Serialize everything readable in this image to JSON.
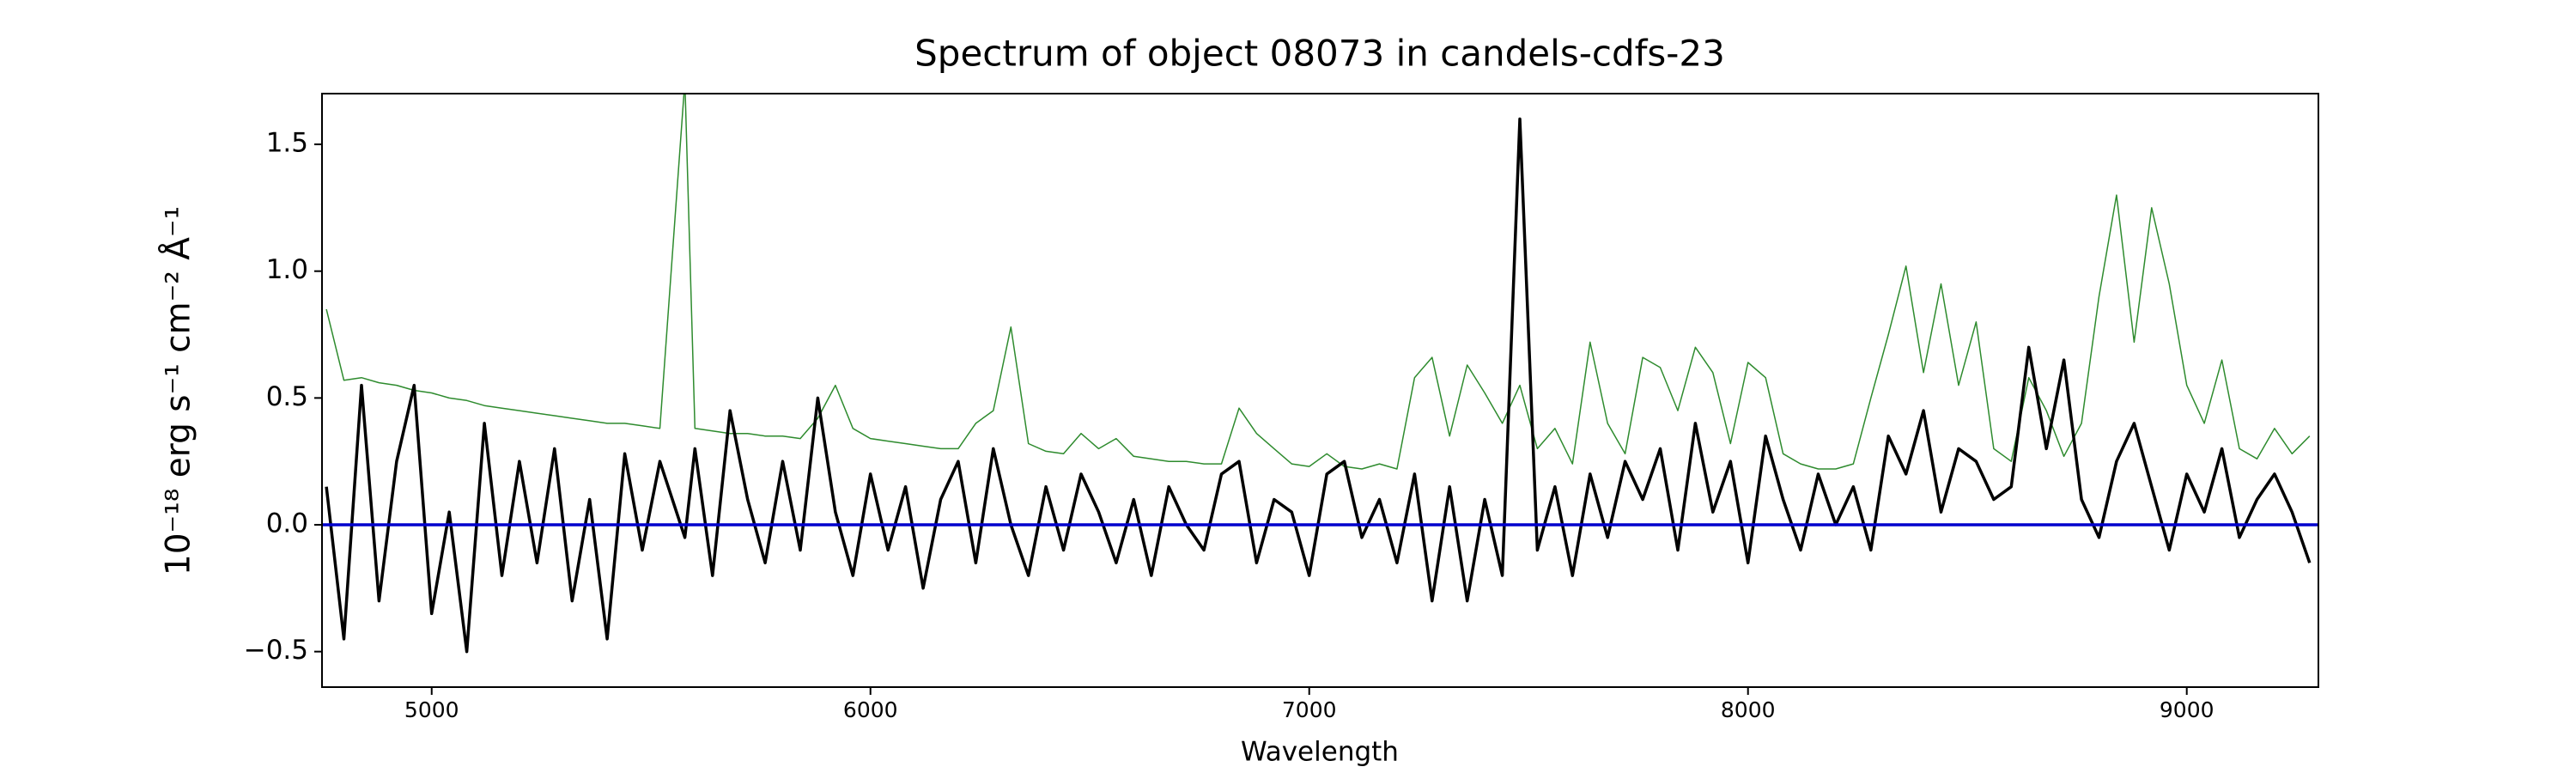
{
  "chart_data": {
    "type": "line",
    "title": "Spectrum of object 08073 in candels-cdfs-23",
    "x_label": "Wavelength",
    "y_label": "10⁻¹⁸ erg s⁻¹ cm⁻² Å⁻¹",
    "xlim": [
      4750,
      9300
    ],
    "ylim": [
      -0.64,
      1.7
    ],
    "xticks": [
      5000,
      6000,
      7000,
      8000,
      9000
    ],
    "yticks": [
      {
        "value": -0.5,
        "label": "−0.5"
      },
      {
        "value": 0,
        "label": "0.0"
      },
      {
        "value": 0.5,
        "label": "0.5"
      },
      {
        "value": 1,
        "label": "1.0"
      },
      {
        "value": 1.5,
        "label": "1.5"
      }
    ],
    "x": [
      4760,
      4800,
      4840,
      4880,
      4920,
      4960,
      5000,
      5040,
      5080,
      5120,
      5160,
      5200,
      5240,
      5280,
      5320,
      5360,
      5400,
      5440,
      5480,
      5520,
      5577,
      5600,
      5640,
      5680,
      5720,
      5760,
      5800,
      5840,
      5880,
      5920,
      5960,
      6000,
      6040,
      6080,
      6120,
      6160,
      6200,
      6240,
      6280,
      6320,
      6360,
      6400,
      6440,
      6480,
      6520,
      6560,
      6600,
      6640,
      6680,
      6720,
      6760,
      6800,
      6840,
      6880,
      6920,
      6960,
      7000,
      7040,
      7080,
      7120,
      7160,
      7200,
      7240,
      7280,
      7320,
      7360,
      7400,
      7440,
      7480,
      7520,
      7560,
      7600,
      7640,
      7680,
      7720,
      7760,
      7800,
      7840,
      7880,
      7920,
      7960,
      8000,
      8040,
      8080,
      8120,
      8160,
      8200,
      8240,
      8280,
      8320,
      8360,
      8400,
      8440,
      8480,
      8520,
      8560,
      8600,
      8640,
      8680,
      8720,
      8760,
      8800,
      8840,
      8880,
      8920,
      8960,
      9000,
      9040,
      9080,
      9120,
      9160,
      9200,
      9240,
      9280
    ],
    "series": [
      {
        "color": "#2e8b2e",
        "width": 1.5,
        "values": [
          0.85,
          0.57,
          0.58,
          0.56,
          0.55,
          0.53,
          0.52,
          0.5,
          0.49,
          0.47,
          0.46,
          0.45,
          0.44,
          0.43,
          0.42,
          0.41,
          0.4,
          0.4,
          0.39,
          0.38,
          1.75,
          0.38,
          0.37,
          0.36,
          0.36,
          0.35,
          0.35,
          0.34,
          0.42,
          0.55,
          0.38,
          0.34,
          0.33,
          0.32,
          0.31,
          0.3,
          0.3,
          0.4,
          0.45,
          0.78,
          0.32,
          0.29,
          0.28,
          0.36,
          0.3,
          0.34,
          0.27,
          0.26,
          0.25,
          0.25,
          0.24,
          0.24,
          0.46,
          0.36,
          0.3,
          0.24,
          0.23,
          0.28,
          0.23,
          0.22,
          0.24,
          0.22,
          0.58,
          0.66,
          0.35,
          0.63,
          0.52,
          0.4,
          0.55,
          0.3,
          0.38,
          0.24,
          0.72,
          0.4,
          0.28,
          0.66,
          0.62,
          0.45,
          0.7,
          0.6,
          0.32,
          0.64,
          0.58,
          0.28,
          0.24,
          0.22,
          0.22,
          0.24,
          0.5,
          0.75,
          1.02,
          0.6,
          0.95,
          0.55,
          0.8,
          0.3,
          0.25,
          0.58,
          0.45,
          0.27,
          0.4,
          0.9,
          1.3,
          0.72,
          1.25,
          0.95,
          0.55,
          0.4,
          0.65,
          0.3,
          0.26,
          0.38,
          0.28,
          0.35
        ]
      },
      {
        "color": "#000000",
        "width": 3.5,
        "values": [
          0.15,
          -0.45,
          0.55,
          -0.3,
          0.25,
          0.55,
          -0.35,
          0.05,
          -0.5,
          0.4,
          -0.2,
          0.25,
          -0.15,
          0.3,
          -0.3,
          0.1,
          -0.45,
          0.28,
          -0.1,
          0.25,
          -0.05,
          0.3,
          -0.2,
          0.45,
          0.1,
          -0.15,
          0.25,
          -0.1,
          0.5,
          0.05,
          -0.2,
          0.2,
          -0.1,
          0.15,
          -0.25,
          0.1,
          0.25,
          -0.15,
          0.3,
          0.0,
          -0.2,
          0.15,
          -0.1,
          0.2,
          0.05,
          -0.15,
          0.1,
          -0.2,
          0.15,
          0.0,
          -0.1,
          0.2,
          0.25,
          -0.15,
          0.1,
          0.05,
          -0.2,
          0.2,
          0.25,
          -0.05,
          0.1,
          -0.15,
          0.2,
          -0.3,
          0.15,
          -0.3,
          0.1,
          -0.2,
          1.6,
          -0.1,
          0.15,
          -0.2,
          0.2,
          -0.05,
          0.25,
          0.1,
          0.3,
          -0.1,
          0.4,
          0.05,
          0.25,
          -0.15,
          0.35,
          0.1,
          -0.1,
          0.2,
          0.0,
          0.15,
          -0.1,
          0.35,
          0.2,
          0.45,
          0.05,
          0.3,
          0.25,
          0.1,
          0.15,
          0.7,
          0.3,
          0.65,
          0.1,
          -0.05,
          0.25,
          0.4,
          0.15,
          -0.1,
          0.2,
          0.05,
          0.3,
          -0.05,
          0.1,
          0.2,
          0.05,
          -0.15
        ]
      }
    ],
    "reference_line": {
      "value": 0,
      "color": "#0000cd"
    }
  }
}
